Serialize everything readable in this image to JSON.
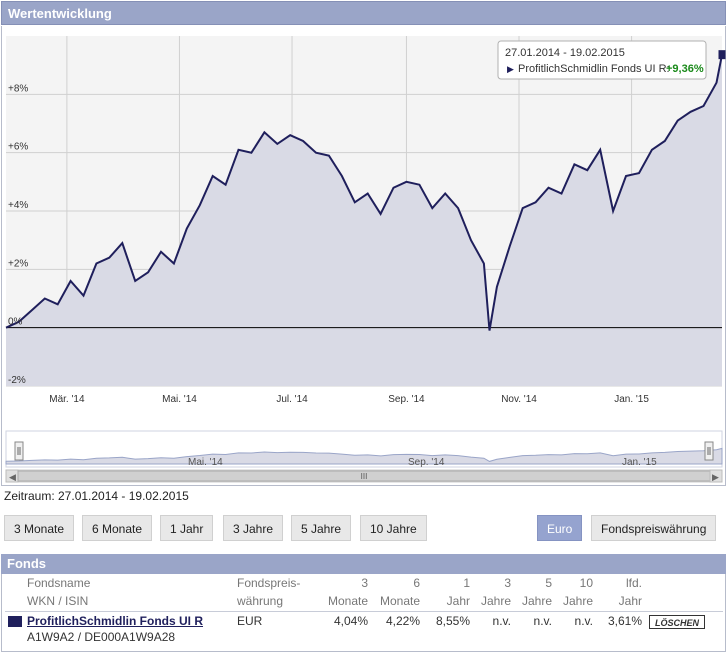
{
  "panel": {
    "title": "Wertentwicklung"
  },
  "tooltip": {
    "date_range": "27.01.2014 - 19.02.2015",
    "fund": "ProfitlichSchmidlin Fonds UI R:",
    "value": "+9,36%"
  },
  "zeitraum": "Zeitraum: 27.01.2014 - 19.02.2015",
  "period_buttons": [
    "3 Monate",
    "6 Monate",
    "1 Jahr",
    "3 Jahre",
    "5 Jahre",
    "10 Jahre"
  ],
  "currency_buttons": [
    "Euro",
    "Fondspreiswährung"
  ],
  "navigator": {
    "labels": [
      "Mai. '14",
      "Sep. '14",
      "Jan. '15"
    ],
    "scroll_handle": "III"
  },
  "colors": {
    "line": "#1f1f5c",
    "fill": "#d9dae5",
    "header": "#9aa5c8",
    "positive": "#1a8a1a",
    "active_button": "#95a3cf"
  },
  "chart_data": {
    "type": "area",
    "title": "",
    "xlabel": "",
    "ylabel": "",
    "ylim": [
      -2,
      10
    ],
    "yticks": [
      -2,
      0,
      2,
      4,
      6,
      8
    ],
    "ytick_labels": [
      "-2%",
      "0%",
      "+2%",
      "+4%",
      "+6%",
      "+8%"
    ],
    "xticks": [
      "2014-03-01",
      "2014-05-01",
      "2014-07-01",
      "2014-09-01",
      "2014-11-01",
      "2015-01-01"
    ],
    "xtick_labels": [
      "Mär. '14",
      "Mai. '14",
      "Jul. '14",
      "Sep. '14",
      "Nov. '14",
      "Jan. '15"
    ],
    "xlim": [
      "2014-01-27",
      "2015-02-19"
    ],
    "grid": true,
    "series": [
      {
        "name": "ProfitlichSchmidlin Fonds UI R",
        "x": [
          "2014-01-27",
          "2014-02-03",
          "2014-02-10",
          "2014-02-17",
          "2014-02-24",
          "2014-03-03",
          "2014-03-10",
          "2014-03-17",
          "2014-03-24",
          "2014-03-31",
          "2014-04-07",
          "2014-04-14",
          "2014-04-21",
          "2014-04-28",
          "2014-05-05",
          "2014-05-12",
          "2014-05-19",
          "2014-05-26",
          "2014-06-02",
          "2014-06-09",
          "2014-06-16",
          "2014-06-23",
          "2014-06-30",
          "2014-07-07",
          "2014-07-14",
          "2014-07-21",
          "2014-07-28",
          "2014-08-04",
          "2014-08-11",
          "2014-08-18",
          "2014-08-25",
          "2014-09-01",
          "2014-09-08",
          "2014-09-15",
          "2014-09-22",
          "2014-09-29",
          "2014-10-06",
          "2014-10-13",
          "2014-10-16",
          "2014-10-20",
          "2014-10-27",
          "2014-11-03",
          "2014-11-10",
          "2014-11-17",
          "2014-11-24",
          "2014-12-01",
          "2014-12-08",
          "2014-12-15",
          "2014-12-22",
          "2014-12-29",
          "2015-01-05",
          "2015-01-12",
          "2015-01-19",
          "2015-01-26",
          "2015-02-02",
          "2015-02-09",
          "2015-02-16",
          "2015-02-19"
        ],
        "values": [
          0.0,
          0.2,
          0.6,
          1.0,
          0.8,
          1.6,
          1.1,
          2.2,
          2.4,
          2.9,
          1.6,
          1.9,
          2.6,
          2.2,
          3.4,
          4.2,
          5.2,
          4.9,
          6.1,
          6.0,
          6.7,
          6.3,
          6.6,
          6.4,
          6.0,
          5.9,
          5.2,
          4.3,
          4.6,
          3.9,
          4.8,
          5.0,
          4.9,
          4.1,
          4.6,
          4.1,
          3.0,
          2.2,
          -0.1,
          1.4,
          2.8,
          4.1,
          4.3,
          4.8,
          4.6,
          5.6,
          5.4,
          6.1,
          4.0,
          5.2,
          5.3,
          6.1,
          6.4,
          7.1,
          7.4,
          7.6,
          8.4,
          9.36
        ]
      }
    ]
  },
  "table": {
    "header": "Fonds",
    "columns": [
      {
        "line1": "Fondsname",
        "line2": "WKN / ISIN"
      },
      {
        "line1": "Fondspreis-",
        "line2": "währung"
      },
      {
        "line1": "3",
        "line2": "Monate"
      },
      {
        "line1": "6",
        "line2": "Monate"
      },
      {
        "line1": "1",
        "line2": "Jahr"
      },
      {
        "line1": "3",
        "line2": "Jahre"
      },
      {
        "line1": "5",
        "line2": "Jahre"
      },
      {
        "line1": "10",
        "line2": "Jahre"
      },
      {
        "line1": "lfd.",
        "line2": "Jahr"
      }
    ],
    "rows": [
      {
        "name": "ProfitlichSchmidlin Fonds UI R",
        "wkn_isin": "A1W9A2 / DE000A1W9A28",
        "currency": "EUR",
        "m3": "4,04%",
        "m6": "4,22%",
        "y1": "8,55%",
        "y3": "n.v.",
        "y5": "n.v.",
        "y10": "n.v.",
        "ytd": "3,61%",
        "delete_label": "LÖSCHEN"
      }
    ]
  }
}
